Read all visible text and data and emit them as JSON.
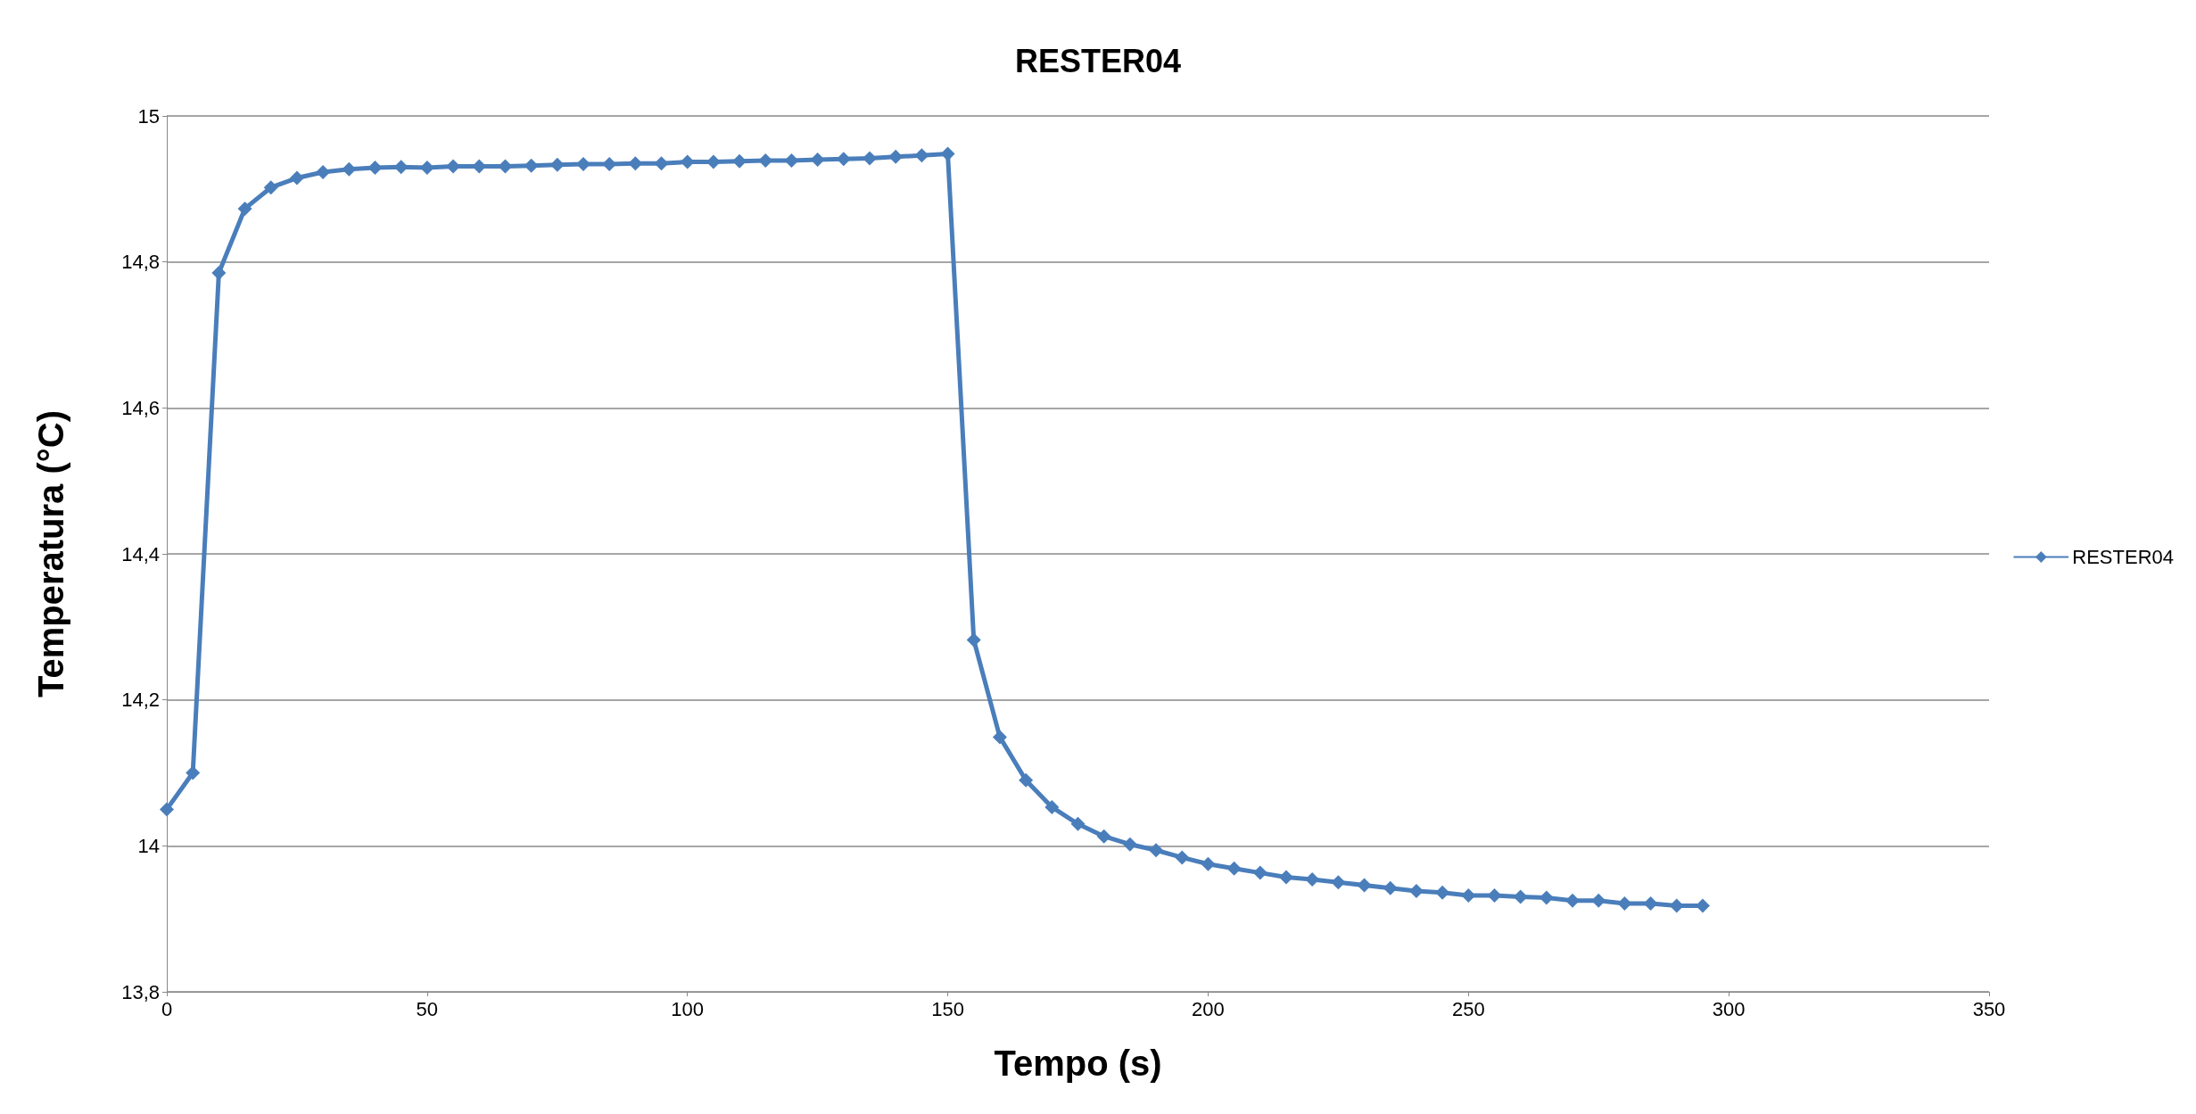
{
  "chart_data": {
    "type": "line",
    "title": "RESTER04",
    "xlabel": "Tempo (s)",
    "ylabel": "Temperatura (°C)",
    "x": [
      0,
      5,
      10,
      15,
      20,
      25,
      30,
      35,
      40,
      45,
      50,
      55,
      60,
      65,
      70,
      75,
      80,
      85,
      90,
      95,
      100,
      105,
      110,
      115,
      120,
      125,
      130,
      135,
      140,
      145,
      150,
      155,
      160,
      165,
      170,
      175,
      180,
      185,
      190,
      195,
      200,
      205,
      210,
      215,
      220,
      225,
      230,
      235,
      240,
      245,
      250,
      255,
      260,
      265,
      270,
      275,
      280,
      285,
      290,
      295
    ],
    "series": [
      {
        "name": "RESTER04",
        "color": "#4a7ebb",
        "values": [
          14.05,
          14.1,
          14.785,
          14.873,
          14.902,
          14.915,
          14.923,
          14.927,
          14.929,
          14.93,
          14.929,
          14.931,
          14.931,
          14.931,
          14.932,
          14.933,
          14.934,
          14.934,
          14.935,
          14.935,
          14.937,
          14.937,
          14.938,
          14.939,
          14.939,
          14.94,
          14.941,
          14.942,
          14.944,
          14.946,
          14.948,
          14.282,
          14.149,
          14.09,
          14.053,
          14.03,
          14.013,
          14.002,
          13.994,
          13.984,
          13.975,
          13.969,
          13.963,
          13.957,
          13.954,
          13.95,
          13.946,
          13.942,
          13.938,
          13.936,
          13.932,
          13.932,
          13.93,
          13.929,
          13.925,
          13.925,
          13.921,
          13.921,
          13.918,
          13.918
        ]
      }
    ],
    "xlim": [
      0,
      350
    ],
    "xticks": [
      0,
      50,
      100,
      150,
      200,
      250,
      300,
      350
    ],
    "ylim": [
      13.8,
      15
    ],
    "yticks": [
      {
        "value": 13.8,
        "label": "13,8"
      },
      14,
      {
        "value": 14.2,
        "label": "14,2"
      },
      {
        "value": 14.4,
        "label": "14,4"
      },
      {
        "value": 14.6,
        "label": "14,6"
      },
      {
        "value": 14.8,
        "label": "14,8"
      },
      15
    ],
    "grid": "y",
    "legend": "right",
    "marker": "diamond",
    "line_style": "solid"
  }
}
